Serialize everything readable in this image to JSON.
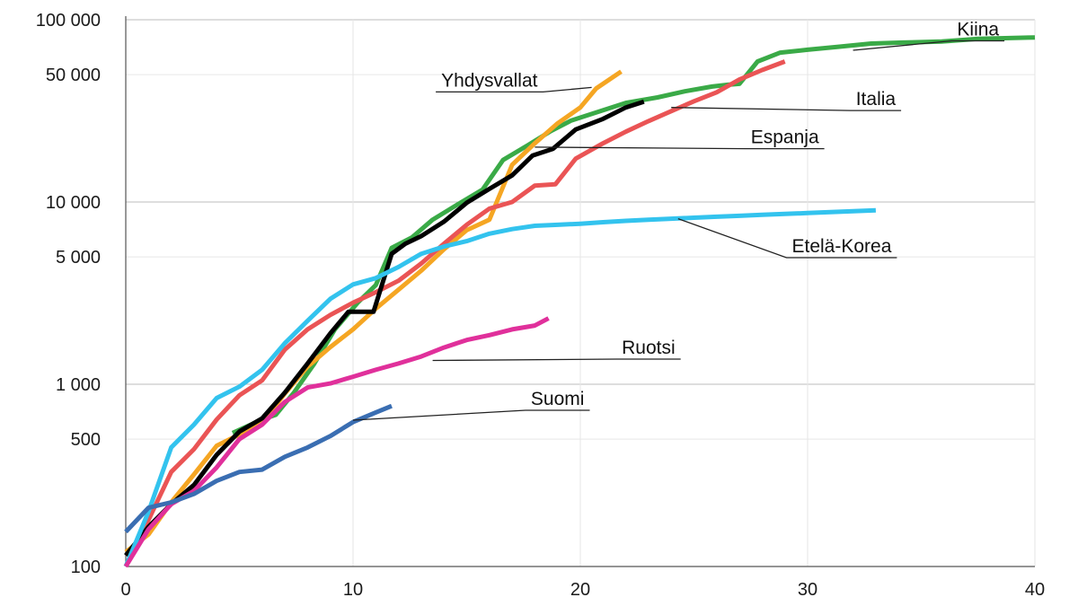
{
  "chart_data": {
    "type": "line",
    "title": "",
    "xlabel": "",
    "ylabel": "",
    "y_scale": "log",
    "xlim": [
      0,
      40
    ],
    "ylim": [
      100,
      100000
    ],
    "x_ticks": [
      0,
      10,
      20,
      30,
      40
    ],
    "x_tick_labels": [
      "0",
      "10",
      "20",
      "30",
      "40"
    ],
    "y_ticks": [
      100,
      500,
      1000,
      5000,
      10000,
      50000,
      100000
    ],
    "y_tick_labels": [
      "100",
      "500",
      "1 000",
      "5 000",
      "10 000",
      "50 000",
      "100 000"
    ],
    "y_major_gridlines": [
      1000,
      10000,
      100000
    ],
    "y_minor_gridlines": [
      500,
      5000,
      50000
    ],
    "x_gridlines": [
      10,
      20,
      30
    ],
    "series": [
      {
        "name": "Kiina",
        "color": "#3aaa47",
        "label_value": [
          37.5,
          82000
        ],
        "leader_end": [
          32,
          68000
        ],
        "points": [
          [
            4.7,
            540
          ],
          [
            6,
            640
          ],
          [
            6.6,
            680
          ],
          [
            7.4,
            900
          ],
          [
            8.3,
            1300
          ],
          [
            9.2,
            2000
          ],
          [
            10.2,
            2800
          ],
          [
            11,
            3500
          ],
          [
            11.7,
            5600
          ],
          [
            12.6,
            6400
          ],
          [
            13.5,
            8000
          ],
          [
            14.6,
            9700
          ],
          [
            15.7,
            11700
          ],
          [
            16.6,
            17000
          ],
          [
            17.7,
            20500
          ],
          [
            18.7,
            24500
          ],
          [
            19.6,
            28000
          ],
          [
            20.7,
            31000
          ],
          [
            22,
            35000
          ],
          [
            23.4,
            37500
          ],
          [
            24.6,
            40500
          ],
          [
            25.8,
            43000
          ],
          [
            26.5,
            44000
          ],
          [
            27,
            44500
          ],
          [
            27.8,
            59000
          ],
          [
            28.8,
            66000
          ],
          [
            30,
            68500
          ],
          [
            31.3,
            71000
          ],
          [
            32.8,
            74000
          ],
          [
            34.2,
            75000
          ],
          [
            35.9,
            76000
          ],
          [
            37.5,
            78500
          ],
          [
            40,
            80000
          ]
        ]
      },
      {
        "name": "Yhdysvallat",
        "color": "#f5a623",
        "label_value": [
          16,
          43000
        ],
        "leader_end": [
          20.5,
          42500
        ],
        "points": [
          [
            0,
            120
          ],
          [
            1,
            150
          ],
          [
            2,
            225
          ],
          [
            3,
            320
          ],
          [
            4,
            460
          ],
          [
            5,
            530
          ],
          [
            6,
            610
          ],
          [
            7,
            890
          ],
          [
            8,
            1250
          ],
          [
            9,
            1600
          ],
          [
            10,
            2000
          ],
          [
            11,
            2600
          ],
          [
            12,
            3300
          ],
          [
            13,
            4200
          ],
          [
            14,
            5500
          ],
          [
            15,
            7000
          ],
          [
            16,
            8000
          ],
          [
            17,
            16000
          ],
          [
            18,
            21000
          ],
          [
            19,
            27000
          ],
          [
            20,
            33000
          ],
          [
            20.7,
            42000
          ],
          [
            21.8,
            52000
          ]
        ]
      },
      {
        "name": "Italia",
        "color": "#ea5455",
        "label_value": [
          33,
          34000
        ],
        "leader_end": [
          24,
          33000
        ],
        "points": [
          [
            0,
            100
          ],
          [
            1,
            180
          ],
          [
            2,
            330
          ],
          [
            3,
            440
          ],
          [
            4,
            640
          ],
          [
            5,
            870
          ],
          [
            6,
            1050
          ],
          [
            7,
            1550
          ],
          [
            8,
            2000
          ],
          [
            9,
            2400
          ],
          [
            10,
            2800
          ],
          [
            11,
            3200
          ],
          [
            12,
            3700
          ],
          [
            13,
            4600
          ],
          [
            14,
            5900
          ],
          [
            15,
            7500
          ],
          [
            16,
            9200
          ],
          [
            17,
            10000
          ],
          [
            18,
            12300
          ],
          [
            18.9,
            12500
          ],
          [
            19.8,
            17300
          ],
          [
            21,
            21000
          ],
          [
            22,
            24300
          ],
          [
            23,
            27800
          ],
          [
            24,
            31500
          ],
          [
            25,
            35700
          ],
          [
            26,
            40000
          ],
          [
            27,
            47000
          ],
          [
            28,
            53000
          ],
          [
            29,
            59000
          ]
        ]
      },
      {
        "name": "Espanja",
        "color": "#000000",
        "label_value": [
          29,
          21000
        ],
        "leader_end": [
          18,
          20000
        ],
        "points": [
          [
            0,
            115
          ],
          [
            1,
            165
          ],
          [
            2,
            220
          ],
          [
            3,
            280
          ],
          [
            4,
            410
          ],
          [
            5,
            550
          ],
          [
            6,
            650
          ],
          [
            7,
            900
          ],
          [
            8,
            1300
          ],
          [
            9,
            1900
          ],
          [
            9.8,
            2500
          ],
          [
            10.9,
            2500
          ],
          [
            11.7,
            5200
          ],
          [
            12.3,
            5900
          ],
          [
            13,
            6500
          ],
          [
            14,
            7800
          ],
          [
            15,
            9900
          ],
          [
            16,
            11800
          ],
          [
            17,
            14000
          ],
          [
            17.9,
            18000
          ],
          [
            18.8,
            19600
          ],
          [
            19.8,
            25000
          ],
          [
            21,
            28600
          ],
          [
            22,
            33000
          ],
          [
            22.8,
            35500
          ]
        ]
      },
      {
        "name": "Etelä-Korea",
        "color": "#33c3ee",
        "label_value": [
          31.5,
          5300
        ],
        "leader_end": [
          24.3,
          8100
        ],
        "points": [
          [
            0,
            100
          ],
          [
            1,
            200
          ],
          [
            2,
            450
          ],
          [
            3,
            600
          ],
          [
            4,
            840
          ],
          [
            5,
            970
          ],
          [
            6,
            1200
          ],
          [
            7,
            1680
          ],
          [
            8,
            2230
          ],
          [
            9,
            2940
          ],
          [
            10,
            3530
          ],
          [
            11,
            3820
          ],
          [
            12,
            4400
          ],
          [
            13,
            5200
          ],
          [
            14,
            5700
          ],
          [
            15,
            6100
          ],
          [
            16,
            6700
          ],
          [
            17,
            7100
          ],
          [
            18,
            7400
          ],
          [
            19,
            7500
          ],
          [
            20,
            7600
          ],
          [
            21,
            7750
          ],
          [
            22,
            7880
          ],
          [
            23,
            8000
          ],
          [
            24,
            8100
          ],
          [
            25,
            8200
          ],
          [
            26,
            8300
          ],
          [
            27,
            8400
          ],
          [
            28,
            8500
          ],
          [
            29,
            8600
          ],
          [
            30,
            8700
          ],
          [
            31,
            8800
          ],
          [
            32,
            8900
          ],
          [
            33,
            9000
          ]
        ]
      },
      {
        "name": "Ruotsi",
        "color": "#e0309b",
        "label_value": [
          23,
          1470
        ],
        "leader_end": [
          13.5,
          1350
        ],
        "points": [
          [
            0,
            100
          ],
          [
            1,
            160
          ],
          [
            2,
            220
          ],
          [
            3,
            260
          ],
          [
            4,
            350
          ],
          [
            5,
            500
          ],
          [
            6,
            600
          ],
          [
            7,
            800
          ],
          [
            8,
            960
          ],
          [
            9,
            1010
          ],
          [
            10,
            1100
          ],
          [
            11,
            1200
          ],
          [
            12,
            1300
          ],
          [
            13,
            1420
          ],
          [
            14,
            1590
          ],
          [
            15,
            1750
          ],
          [
            16,
            1860
          ],
          [
            17,
            2000
          ],
          [
            18,
            2100
          ],
          [
            18.6,
            2300
          ]
        ]
      },
      {
        "name": "Suomi",
        "color": "#3a6eb2",
        "label_value": [
          19,
          770
        ],
        "leader_end": [
          10,
          635
        ],
        "points": [
          [
            0,
            155
          ],
          [
            1,
            210
          ],
          [
            2,
            225
          ],
          [
            3,
            250
          ],
          [
            4,
            295
          ],
          [
            5,
            330
          ],
          [
            6,
            340
          ],
          [
            7,
            400
          ],
          [
            8,
            450
          ],
          [
            9,
            520
          ],
          [
            10,
            620
          ],
          [
            11,
            700
          ],
          [
            11.7,
            760
          ]
        ]
      }
    ]
  }
}
